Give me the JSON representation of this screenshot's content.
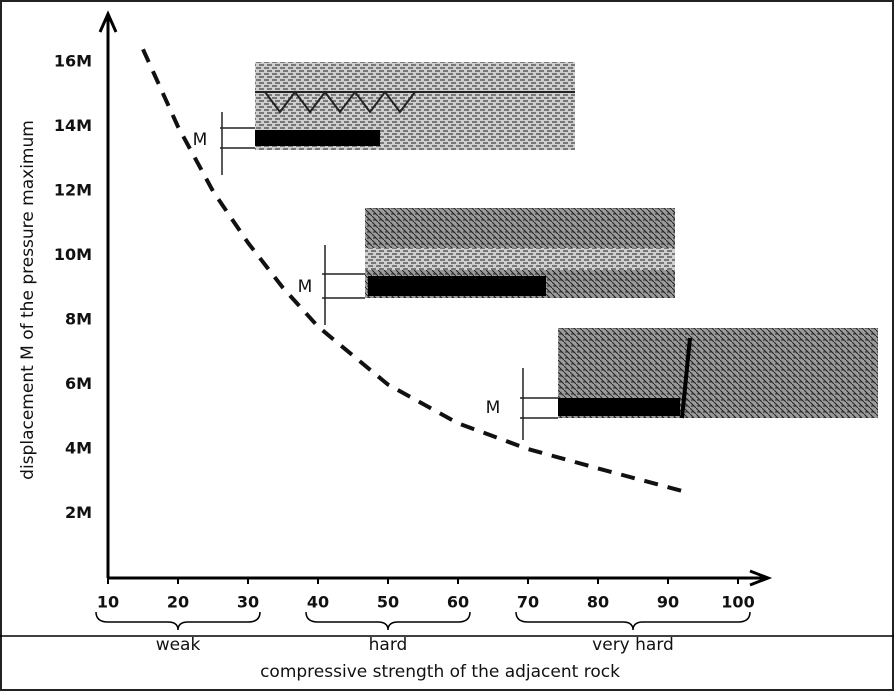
{
  "chart_data": {
    "type": "line",
    "y_label": "displacement M of the pressure maximum",
    "x_label": "compressive strength of the adjacent rock",
    "x": [
      15,
      20,
      25,
      30,
      35,
      40,
      50,
      60,
      70,
      80,
      92
    ],
    "series": [
      {
        "color": "#111111",
        "dashed": true,
        "values": [
          16.4,
          14.0,
          12.0,
          10.4,
          9.0,
          7.8,
          6.0,
          4.8,
          4.0,
          3.4,
          2.7
        ]
      }
    ],
    "xlim": [
      10,
      100
    ],
    "ylim": [
      0,
      17
    ],
    "xticks": [
      10,
      20,
      30,
      40,
      50,
      60,
      70,
      80,
      90,
      100
    ],
    "yticks": [
      {
        "value": 2,
        "label": "2M"
      },
      {
        "value": 4,
        "label": "4M"
      },
      {
        "value": 6,
        "label": "6M"
      },
      {
        "value": 8,
        "label": "8M"
      },
      {
        "value": 10,
        "label": "10M"
      },
      {
        "value": 12,
        "label": "12M"
      },
      {
        "value": 14,
        "label": "14M"
      },
      {
        "value": 16,
        "label": "16M"
      }
    ],
    "ranges": [
      {
        "label": "weak",
        "from": 10,
        "to": 30
      },
      {
        "label": "hard",
        "from": 40,
        "to": 60
      },
      {
        "label": "very hard",
        "from": 70,
        "to": 100
      }
    ],
    "annotations": [
      "M",
      "M",
      "M"
    ],
    "grid": false
  }
}
